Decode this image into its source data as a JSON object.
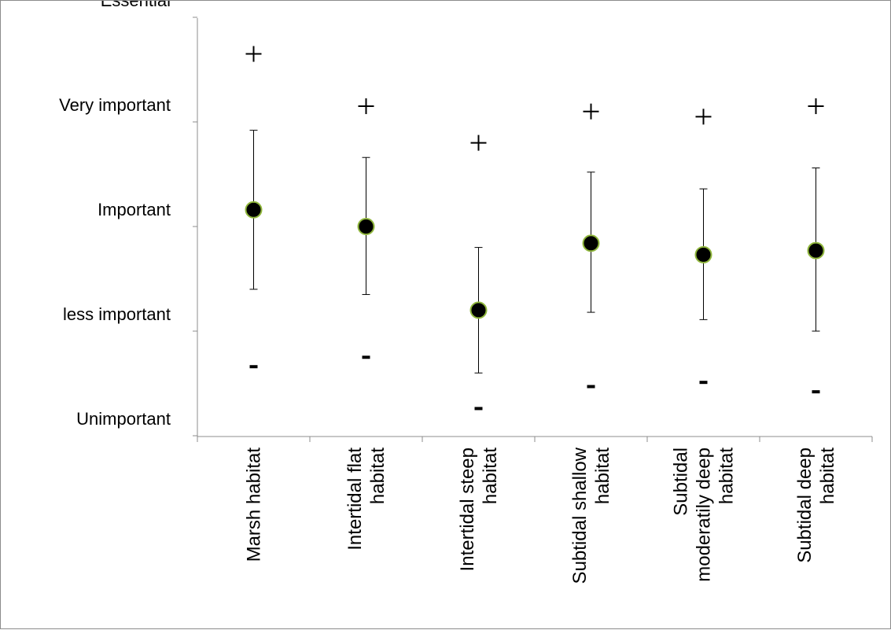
{
  "chart_data": {
    "type": "scatter",
    "title": "",
    "xlabel": "",
    "ylabel": "",
    "ylim": [
      0,
      4
    ],
    "y_tick_labels": [
      "Unimportant",
      "less important",
      "Important",
      "Very important",
      "Essential"
    ],
    "categories": [
      [
        "Marsh habitat"
      ],
      [
        "Intertidal flat",
        "habitat"
      ],
      [
        "Intertidal steep",
        "habitat"
      ],
      [
        "Subtidal shallow",
        "habitat"
      ],
      [
        "Subtidal",
        "moderatily deep",
        "habitat"
      ],
      [
        "Subtidal deep",
        "habitat"
      ]
    ],
    "series": [
      {
        "marker": "circle",
        "values": [
          2.16,
          2.0,
          1.2,
          1.84,
          1.73,
          1.77
        ]
      },
      {
        "marker": "error_bar_low",
        "values": [
          1.4,
          1.35,
          0.6,
          1.18,
          1.11,
          1.0
        ]
      },
      {
        "marker": "error_bar_high",
        "values": [
          2.92,
          2.66,
          1.8,
          2.52,
          2.36,
          2.56
        ]
      },
      {
        "marker": "plus",
        "values": [
          3.65,
          3.15,
          2.8,
          3.1,
          3.05,
          3.15
        ]
      },
      {
        "marker": "minus",
        "values": [
          0.66,
          0.75,
          0.26,
          0.47,
          0.51,
          0.42
        ]
      }
    ],
    "grid": false,
    "legend": "none"
  }
}
